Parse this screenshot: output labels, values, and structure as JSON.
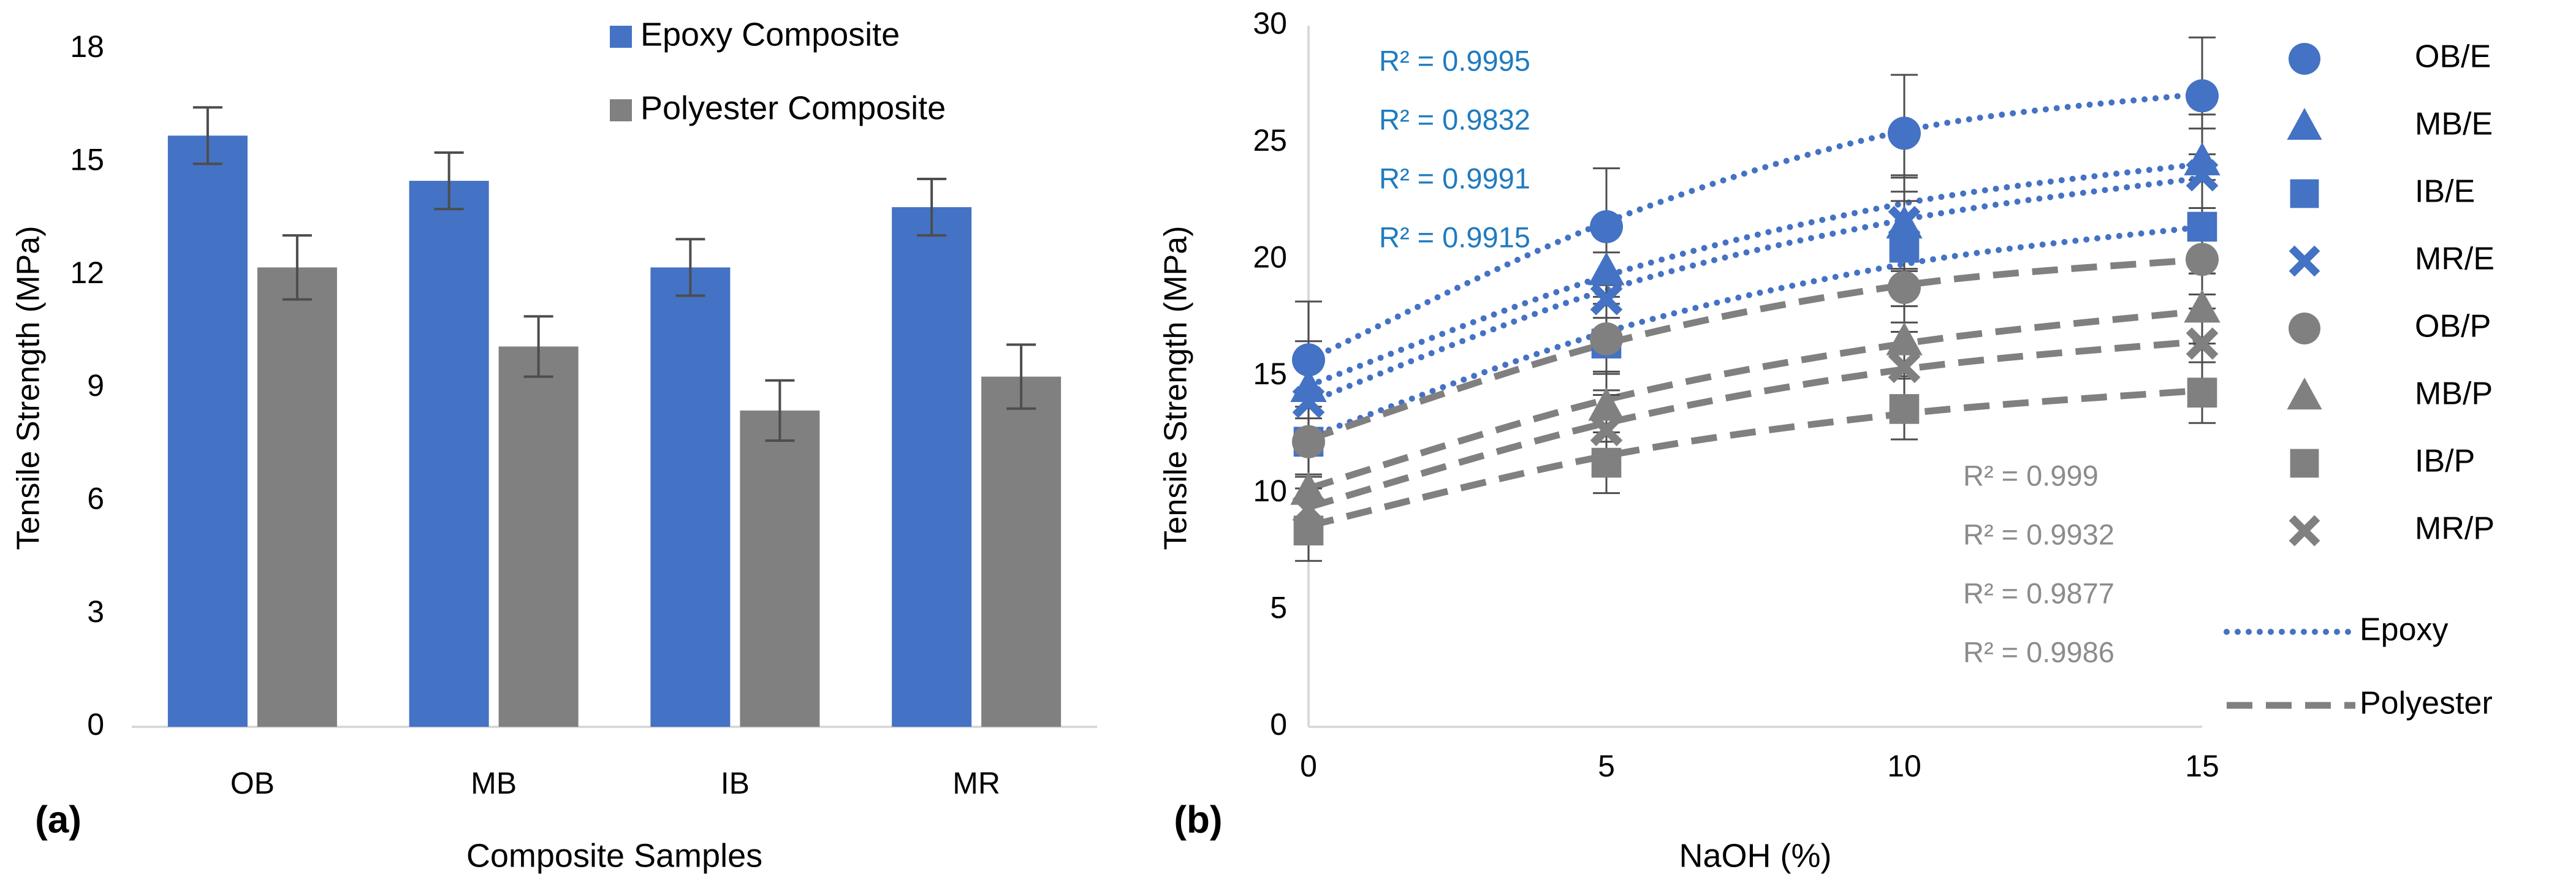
{
  "colors": {
    "epoxy": "#4472C4",
    "polyester": "#808080",
    "epoxy_r2": "#1F7BC0",
    "polyester_r2": "#8C8C8C",
    "axis": "#D9D9D9",
    "text": "#000000"
  },
  "chart_data": [
    {
      "panel_label": "(a)",
      "type": "bar",
      "title": "",
      "xlabel": "Composite Samples",
      "ylabel": "Tensile Strength (MPa)",
      "ylim": [
        0,
        18
      ],
      "yticks": [
        "0",
        "3",
        "6",
        "9",
        "12",
        "15",
        "18"
      ],
      "categories": [
        "OB",
        "MB",
        "IB",
        "MR"
      ],
      "grid": false,
      "legend_position": "top-right",
      "series": [
        {
          "name": "Epoxy Composite",
          "color_key": "epoxy",
          "values": [
            15.7,
            14.5,
            12.2,
            13.8
          ],
          "errors": [
            0.75,
            0.75,
            0.75,
            0.75
          ]
        },
        {
          "name": "Polyester Composite",
          "color_key": "polyester",
          "values": [
            12.2,
            10.1,
            8.4,
            9.3
          ],
          "errors": [
            0.85,
            0.8,
            0.8,
            0.85
          ]
        }
      ]
    },
    {
      "panel_label": "(b)",
      "type": "scatter",
      "title": "",
      "xlabel": "NaOH (%)",
      "ylabel": "Tensile Strength (MPa)",
      "xlim": [
        0,
        15
      ],
      "ylim": [
        0,
        30
      ],
      "x": [
        0,
        5,
        10,
        15
      ],
      "xticks": [
        "0",
        "5",
        "10",
        "15"
      ],
      "yticks": [
        "0",
        "5",
        "10",
        "15",
        "20",
        "25",
        "30"
      ],
      "grid": false,
      "legend_position": "right",
      "series": [
        {
          "name": "OB/E",
          "marker": "circle",
          "color_key": "epoxy",
          "values": [
            15.7,
            21.4,
            25.4,
            27.0
          ],
          "errors": [
            2.5,
            2.5,
            2.5,
            2.5
          ]
        },
        {
          "name": "MB/E",
          "marker": "triangle",
          "color_key": "epoxy",
          "values": [
            14.5,
            19.5,
            21.5,
            24.2
          ],
          "errors": [
            2.0,
            2.0,
            2.0,
            2.0
          ]
        },
        {
          "name": "IB/E",
          "marker": "square",
          "color_key": "epoxy",
          "values": [
            12.2,
            16.4,
            20.5,
            21.4
          ],
          "errors": [
            2.0,
            2.0,
            2.0,
            2.0
          ]
        },
        {
          "name": "MR/E",
          "marker": "x",
          "color_key": "epoxy",
          "values": [
            13.9,
            18.3,
            21.6,
            23.6
          ],
          "errors": [
            2.0,
            2.0,
            2.0,
            2.0
          ]
        },
        {
          "name": "OB/P",
          "marker": "circle",
          "color_key": "polyester",
          "values": [
            12.2,
            16.6,
            18.8,
            20.0
          ],
          "errors": [
            1.5,
            1.5,
            1.5,
            1.5
          ]
        },
        {
          "name": "MB/P",
          "marker": "triangle",
          "color_key": "polyester",
          "values": [
            10.1,
            13.7,
            16.5,
            17.9
          ],
          "errors": [
            1.5,
            1.5,
            1.5,
            1.5
          ]
        },
        {
          "name": "IB/P",
          "marker": "square",
          "color_key": "polyester",
          "values": [
            8.4,
            11.3,
            13.6,
            14.3
          ],
          "errors": [
            1.3,
            1.3,
            1.3,
            1.3
          ]
        },
        {
          "name": "MR/P",
          "marker": "x",
          "color_key": "polyester",
          "values": [
            9.3,
            12.7,
            15.4,
            16.4
          ],
          "errors": [
            1.5,
            1.5,
            1.5,
            1.5
          ]
        }
      ],
      "trendlines": [
        {
          "group": "epoxy",
          "style": "dotted",
          "color_key": "epoxy",
          "curves": [
            [
              15.7,
              21.6,
              25.5,
              27.1
            ],
            [
              14.6,
              19.3,
              22.4,
              24.1
            ],
            [
              12.4,
              16.9,
              19.8,
              21.4
            ],
            [
              13.9,
              18.7,
              21.7,
              23.5
            ]
          ]
        },
        {
          "group": "polyester",
          "style": "dashed",
          "color_key": "polyester",
          "curves": [
            [
              12.3,
              16.4,
              18.9,
              20.0
            ],
            [
              10.2,
              14.0,
              16.4,
              17.8
            ],
            [
              8.6,
              11.6,
              13.4,
              14.4
            ],
            [
              9.4,
              13.0,
              15.3,
              16.5
            ]
          ]
        }
      ],
      "epoxy_r2": [
        "R² = 0.9995",
        "R² = 0.9832",
        "R² = 0.9991",
        "R² = 0.9915"
      ],
      "polyester_r2": [
        "R² = 0.999",
        "R² = 0.9932",
        "R² = 0.9877",
        "R² = 0.9986"
      ],
      "legend_lines": [
        {
          "name": "Epoxy",
          "style": "dotted",
          "color_key": "epoxy"
        },
        {
          "name": "Polyester",
          "style": "dashed",
          "color_key": "polyester"
        }
      ]
    }
  ]
}
